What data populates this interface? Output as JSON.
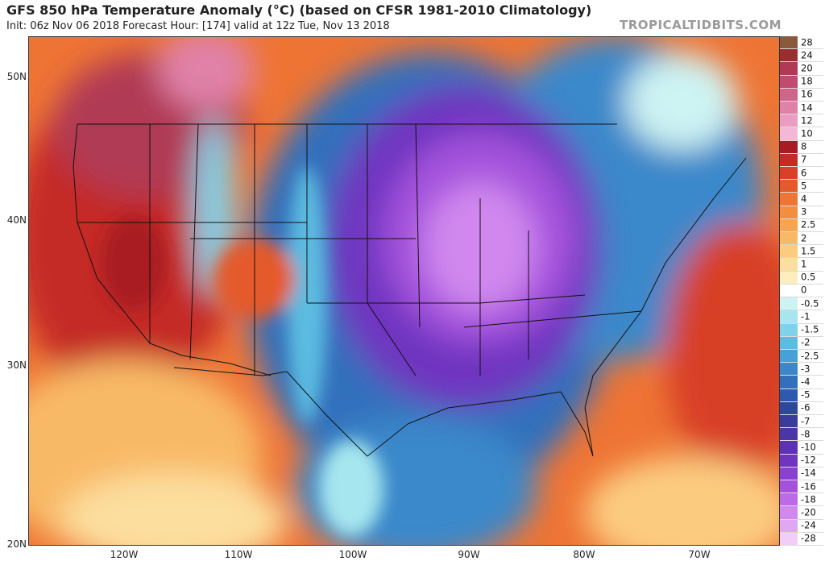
{
  "header": {
    "title": "GFS 850 hPa Temperature Anomaly (°C) (based on CFSR 1981-2010 Climatology)",
    "subtitle": "Init: 06z Nov 06 2018   Forecast Hour: [174]   valid at 12z Tue, Nov 13 2018",
    "site": "TROPICALTIDBITS.COM"
  },
  "axes": {
    "lat_labels": [
      "50N",
      "40N",
      "30N",
      "20N"
    ],
    "lon_labels": [
      "120W",
      "110W",
      "100W",
      "90W",
      "80W",
      "70W"
    ]
  },
  "legend": {
    "items": [
      {
        "label": "28",
        "color": "#8a5a3c"
      },
      {
        "label": "24",
        "color": "#9a2e2e"
      },
      {
        "label": "20",
        "color": "#b03a55"
      },
      {
        "label": "18",
        "color": "#c24a70"
      },
      {
        "label": "16",
        "color": "#d2648c"
      },
      {
        "label": "14",
        "color": "#e081a8"
      },
      {
        "label": "12",
        "color": "#eb9cc2"
      },
      {
        "label": "10",
        "color": "#f3b8d6"
      },
      {
        "label": "8",
        "color": "#a81a24"
      },
      {
        "label": "7",
        "color": "#c42a26"
      },
      {
        "label": "6",
        "color": "#d84028"
      },
      {
        "label": "5",
        "color": "#e55a2c"
      },
      {
        "label": "4",
        "color": "#ee7434"
      },
      {
        "label": "3",
        "color": "#f38e40"
      },
      {
        "label": "2.5",
        "color": "#f6a552"
      },
      {
        "label": "2",
        "color": "#f8b966"
      },
      {
        "label": "1.5",
        "color": "#fbcc80"
      },
      {
        "label": "1",
        "color": "#fcde9e"
      },
      {
        "label": "0.5",
        "color": "#fdeebe"
      },
      {
        "label": "0",
        "color": "#ffffff"
      },
      {
        "label": "-0.5",
        "color": "#cdf3f3"
      },
      {
        "label": "-1",
        "color": "#a6e6ee"
      },
      {
        "label": "-1.5",
        "color": "#7fd2e8"
      },
      {
        "label": "-2",
        "color": "#5cbbe0"
      },
      {
        "label": "-2.5",
        "color": "#46a2d6"
      },
      {
        "label": "-3",
        "color": "#3a88ca"
      },
      {
        "label": "-4",
        "color": "#3270bc"
      },
      {
        "label": "-5",
        "color": "#2d5aac"
      },
      {
        "label": "-6",
        "color": "#2b489c"
      },
      {
        "label": "-7",
        "color": "#3a3c9c"
      },
      {
        "label": "-8",
        "color": "#4a36a6"
      },
      {
        "label": "-10",
        "color": "#5c32b2"
      },
      {
        "label": "-12",
        "color": "#7034c0"
      },
      {
        "label": "-14",
        "color": "#8a40d0"
      },
      {
        "label": "-16",
        "color": "#a452dc"
      },
      {
        "label": "-18",
        "color": "#bc6ae6"
      },
      {
        "label": "-20",
        "color": "#d088ee"
      },
      {
        "label": "-24",
        "color": "#e0a8f2"
      },
      {
        "label": "-28",
        "color": "#f0cef8"
      }
    ]
  }
}
